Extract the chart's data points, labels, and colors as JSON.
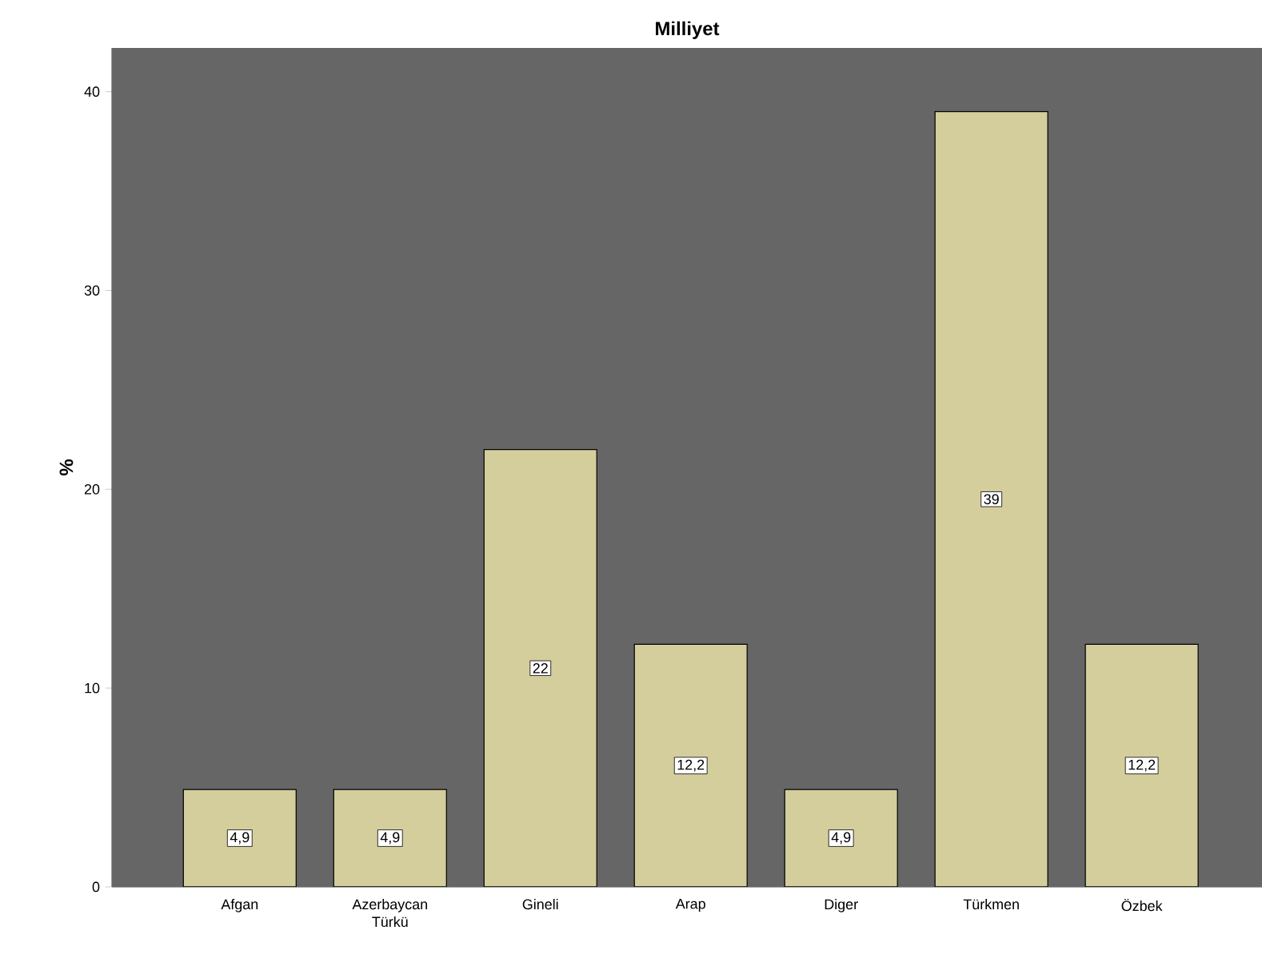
{
  "chart_data": {
    "type": "bar",
    "title": "Milliyet",
    "ylabel": "%",
    "categories": [
      "Afgan",
      "Azerbaycan Türkü",
      "Gineli",
      "Arap",
      "Diger",
      "Türkmen",
      "Özbek"
    ],
    "values": [
      4.9,
      4.9,
      22,
      12.2,
      4.9,
      39,
      12.2
    ],
    "value_labels": [
      "4,9",
      "4,9",
      "22",
      "12,2",
      "4,9",
      "39",
      "12,2"
    ],
    "color": "#d3ce9c",
    "ylim": [
      0,
      42.2
    ],
    "yticks": [
      0,
      10,
      20,
      30,
      40
    ]
  }
}
